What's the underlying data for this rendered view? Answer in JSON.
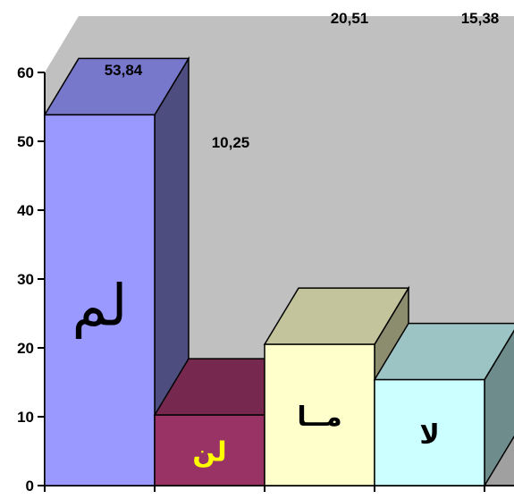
{
  "chart_data": {
    "type": "bar",
    "three_d": true,
    "categories": [
      "لم",
      "لن",
      "مــا",
      "لا"
    ],
    "values": [
      53.84,
      10.25,
      20.51,
      15.38
    ],
    "value_labels": [
      "53,84",
      "10,25",
      "20,51",
      "15,38"
    ],
    "ylim": [
      0,
      60
    ],
    "yticks": [
      "0",
      "10",
      "20",
      "30",
      "40",
      "50",
      "60"
    ],
    "grid": false,
    "legend": "none",
    "colors": {
      "bar_front": [
        "#9999ff",
        "#993366",
        "#ffffcc",
        "#ccffff"
      ],
      "bar_top": [
        "#7777cc",
        "#77284f",
        "#c4c49c",
        "#9cc4c4"
      ],
      "bar_side": [
        "#4d4d80",
        "#5a1e3c",
        "#8c8c6e",
        "#6e8c8c"
      ],
      "category_text": [
        "#000000",
        "#ffff00",
        "#000000",
        "#000000"
      ],
      "walls": "#c0c0c0",
      "floor": "#a0a0a0"
    }
  }
}
